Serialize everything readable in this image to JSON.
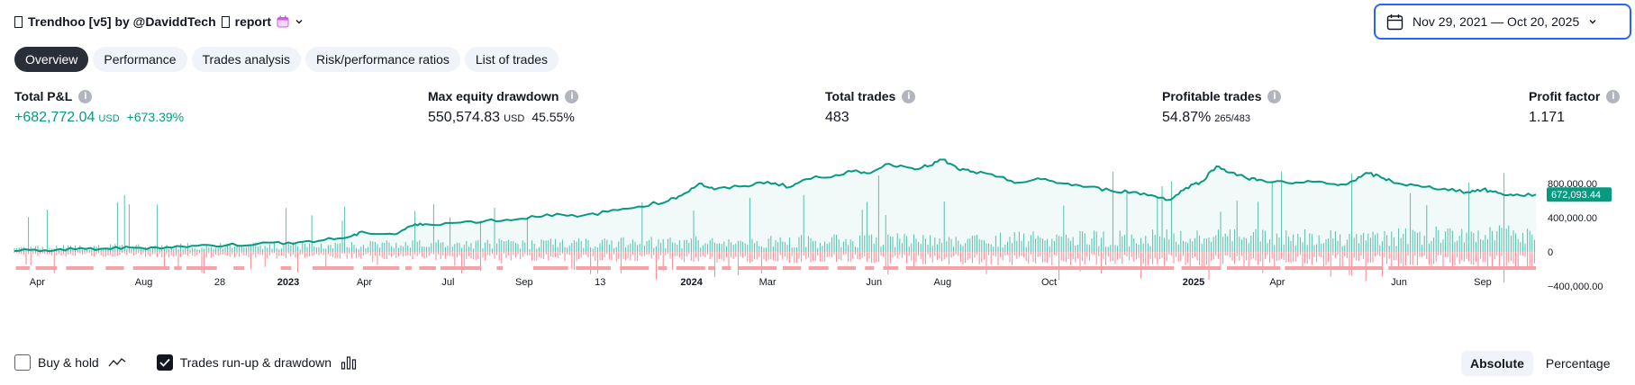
{
  "header": {
    "title": "Trendhoo [v5] by @DaviddTech",
    "suffix": "report"
  },
  "date_range": {
    "label": "Nov 29, 2021 — Oct 20, 2025"
  },
  "tabs": [
    {
      "label": "Overview",
      "active": true
    },
    {
      "label": "Performance",
      "active": false
    },
    {
      "label": "Trades analysis",
      "active": false
    },
    {
      "label": "Risk/performance ratios",
      "active": false
    },
    {
      "label": "List of trades",
      "active": false
    }
  ],
  "metrics": {
    "total_pnl": {
      "label": "Total P&L",
      "value": "+682,772.04",
      "unit": "USD",
      "pct": "+673.39%"
    },
    "max_dd": {
      "label": "Max equity drawdown",
      "value": "550,574.83",
      "unit": "USD",
      "pct": "45.55%"
    },
    "total_trades": {
      "label": "Total trades",
      "value": "483"
    },
    "profitable": {
      "label": "Profitable trades",
      "value": "54.87%",
      "sub": "265/483"
    },
    "profit_factor": {
      "label": "Profit factor",
      "value": "1.171"
    }
  },
  "chart_data": {
    "type": "line",
    "y_ticks": [
      {
        "value": 800000,
        "label": "800,000.00"
      },
      {
        "value": 400000,
        "label": "400,000.00"
      },
      {
        "value": 0,
        "label": "0"
      },
      {
        "value": -400000,
        "label": "−400,000.00"
      }
    ],
    "ylim": [
      -420000,
      1150000
    ],
    "current_value": 672093.44,
    "current_label": "672,093.44",
    "x_range": [
      0,
      100
    ],
    "x_labels": [
      {
        "x": 1.5,
        "label": "Apr",
        "bold": false
      },
      {
        "x": 8.5,
        "label": "Aug",
        "bold": false
      },
      {
        "x": 13.5,
        "label": "28",
        "bold": false
      },
      {
        "x": 18.0,
        "label": "2023",
        "bold": true
      },
      {
        "x": 23.0,
        "label": "Apr",
        "bold": false
      },
      {
        "x": 28.5,
        "label": "Jul",
        "bold": false
      },
      {
        "x": 33.5,
        "label": "Sep",
        "bold": false
      },
      {
        "x": 38.5,
        "label": "13",
        "bold": false
      },
      {
        "x": 44.5,
        "label": "2024",
        "bold": true
      },
      {
        "x": 49.5,
        "label": "Mar",
        "bold": false
      },
      {
        "x": 56.5,
        "label": "Jun",
        "bold": false
      },
      {
        "x": 61.0,
        "label": "Aug",
        "bold": false
      },
      {
        "x": 68.0,
        "label": "Oct",
        "bold": false
      },
      {
        "x": 77.5,
        "label": "2025",
        "bold": true
      },
      {
        "x": 83.0,
        "label": "Apr",
        "bold": false
      },
      {
        "x": 91.0,
        "label": "Jun",
        "bold": false
      },
      {
        "x": 96.5,
        "label": "Sep",
        "bold": false
      }
    ],
    "equity": [
      [
        0,
        10000
      ],
      [
        2,
        20000
      ],
      [
        4,
        28000
      ],
      [
        6,
        40000
      ],
      [
        8,
        48000
      ],
      [
        10,
        55000
      ],
      [
        12,
        70000
      ],
      [
        14,
        80000
      ],
      [
        16,
        95000
      ],
      [
        18,
        110000
      ],
      [
        20,
        130000
      ],
      [
        22,
        175000
      ],
      [
        23,
        230000
      ],
      [
        25,
        205000
      ],
      [
        26,
        300000
      ],
      [
        27,
        325000
      ],
      [
        29,
        340000
      ],
      [
        31,
        365000
      ],
      [
        33,
        380000
      ],
      [
        35,
        440000
      ],
      [
        37,
        410000
      ],
      [
        39,
        470000
      ],
      [
        41,
        530000
      ],
      [
        43,
        600000
      ],
      [
        44,
        680000
      ],
      [
        45,
        800000
      ],
      [
        46,
        730000
      ],
      [
        48,
        770000
      ],
      [
        49.5,
        820000
      ],
      [
        51,
        760000
      ],
      [
        52,
        850000
      ],
      [
        54,
        900000
      ],
      [
        55,
        940000
      ],
      [
        56,
        920000
      ],
      [
        57.5,
        1030000
      ],
      [
        59,
        980000
      ],
      [
        60,
        1000000
      ],
      [
        61,
        1080000
      ],
      [
        62,
        970000
      ],
      [
        63,
        940000
      ],
      [
        64.5,
        880000
      ],
      [
        66,
        810000
      ],
      [
        67.5,
        850000
      ],
      [
        69,
        800000
      ],
      [
        70.5,
        760000
      ],
      [
        72,
        720000
      ],
      [
        73.5,
        700000
      ],
      [
        75,
        650000
      ],
      [
        76,
        610000
      ],
      [
        77,
        750000
      ],
      [
        78,
        820000
      ],
      [
        79,
        1000000
      ],
      [
        80,
        930000
      ],
      [
        81,
        860000
      ],
      [
        82,
        840000
      ],
      [
        84,
        800000
      ],
      [
        85.5,
        820000
      ],
      [
        87,
        780000
      ],
      [
        88,
        830000
      ],
      [
        89,
        920000
      ],
      [
        90,
        860000
      ],
      [
        91,
        800000
      ],
      [
        92.5,
        760000
      ],
      [
        94,
        740000
      ],
      [
        95.5,
        700000
      ],
      [
        96.5,
        730000
      ],
      [
        97.5,
        690000
      ],
      [
        98.5,
        660000
      ],
      [
        100,
        672093
      ]
    ],
    "markers": [
      [
        0.1,
        1.0
      ],
      [
        1.4,
        2.8
      ],
      [
        3.4,
        5.2
      ],
      [
        6.0,
        7.2
      ],
      [
        7.8,
        10.2
      ],
      [
        10.5,
        11.0
      ],
      [
        11.3,
        13.3
      ],
      [
        14.4,
        15.1
      ],
      [
        17.5,
        18.2
      ],
      [
        19.6,
        22.3
      ],
      [
        22.9,
        25.3
      ],
      [
        25.7,
        26.1
      ],
      [
        26.6,
        27.7
      ],
      [
        28.0,
        30.7
      ],
      [
        31.7,
        32.1
      ],
      [
        34.1,
        36.4
      ],
      [
        36.9,
        39.2
      ],
      [
        39.8,
        41.7
      ],
      [
        42.3,
        42.9
      ],
      [
        43.5,
        45.4
      ],
      [
        45.6,
        46.0
      ],
      [
        46.5,
        47.1
      ],
      [
        47.6,
        50.1
      ],
      [
        50.5,
        51.7
      ],
      [
        52.2,
        53.5
      ],
      [
        54.1,
        55.3
      ],
      [
        55.9,
        56.5
      ],
      [
        57.1,
        58.1
      ],
      [
        58.6,
        76.2
      ],
      [
        76.7,
        79.3
      ],
      [
        79.7,
        83.2
      ],
      [
        83.5,
        89.9
      ],
      [
        90.3,
        100
      ]
    ]
  },
  "bottom": {
    "buy_hold": {
      "label": "Buy & hold",
      "checked": false
    },
    "runup": {
      "label": "Trades run-up & drawdown",
      "checked": true
    }
  },
  "toggle": {
    "absolute": "Absolute",
    "percentage": "Percentage",
    "selected": "absolute"
  }
}
